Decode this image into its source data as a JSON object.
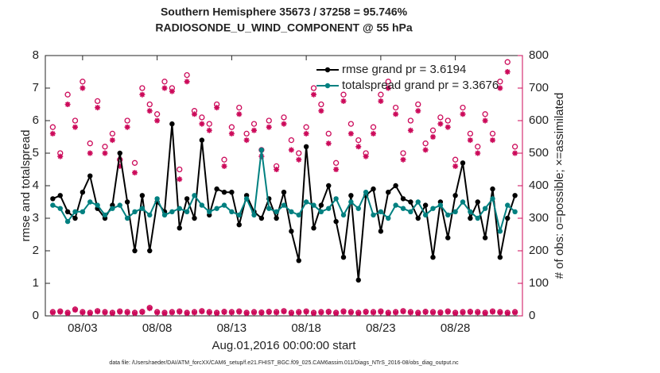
{
  "chart_data": {
    "type": "line",
    "title": [
      "Southern Hemisphere 35673 / 37258 = 95.746%",
      "RADIOSONDE_U_WIND_COMPONENT @ 55 hPa"
    ],
    "xlabel": "Aug.01,2016 00:00:00 start",
    "ylabel": "rmse and totalspread",
    "y2label": "# of obs: o=possible; ×=assimilated",
    "footnote": "data file: /Users/raeder/DAI/ATM_forcXX/CAM6_setup/f.e21.FHIST_BGC.f09_025.CAM6assim.011/Diags_NTrS_2016-08/obs_diag_output.nc",
    "legend": "northeast",
    "xlim": [
      -0.5,
      31.5
    ],
    "xticks": [
      {
        "value": 2,
        "label": "08/03"
      },
      {
        "value": 7,
        "label": "08/08"
      },
      {
        "value": 12,
        "label": "08/13"
      },
      {
        "value": 17,
        "label": "08/18"
      },
      {
        "value": 22,
        "label": "08/23"
      },
      {
        "value": 27,
        "label": "08/28"
      }
    ],
    "ylim": [
      0,
      8
    ],
    "yticks": [
      0,
      1,
      2,
      3,
      4,
      5,
      6,
      7,
      8
    ],
    "y2lim": [
      0,
      800
    ],
    "y2ticks": [
      0,
      100,
      200,
      300,
      400,
      500,
      600,
      700,
      800
    ],
    "y2color": "#cc0a5a",
    "x": [
      0,
      0.5,
      1,
      1.5,
      2,
      2.5,
      3,
      3.5,
      4,
      4.5,
      5,
      5.5,
      6,
      6.5,
      7,
      7.5,
      8,
      8.5,
      9,
      9.5,
      10,
      10.5,
      11,
      11.5,
      12,
      12.5,
      13,
      13.5,
      14,
      14.5,
      15,
      15.5,
      16,
      16.5,
      17,
      17.5,
      18,
      18.5,
      19,
      19.5,
      20,
      20.5,
      21,
      21.5,
      22,
      22.5,
      23,
      23.5,
      24,
      24.5,
      25,
      25.5,
      26,
      26.5,
      27,
      27.5,
      28,
      28.5,
      29,
      29.5,
      30,
      30.5,
      31
    ],
    "series": [
      {
        "name": "rmse grand pr = 3.6194",
        "color": "#000000",
        "marker": "dot",
        "line": true,
        "values": [
          3.6,
          3.7,
          3.2,
          3.0,
          3.8,
          4.3,
          3.3,
          3.0,
          3.4,
          5.0,
          3.5,
          2.0,
          3.7,
          2.0,
          3.5,
          3.2,
          5.9,
          2.7,
          3.6,
          3.0,
          5.4,
          3.1,
          3.9,
          3.8,
          3.8,
          2.8,
          3.7,
          3.2,
          3.0,
          3.6,
          3.0,
          3.8,
          2.6,
          1.7,
          5.2,
          2.7,
          3.4,
          4.0,
          2.9,
          1.8,
          3.7,
          1.1,
          3.7,
          3.9,
          2.6,
          3.8,
          4.0,
          3.6,
          3.5,
          3.0,
          3.4,
          1.8,
          3.5,
          2.4,
          3.7,
          4.7,
          3.0,
          3.5,
          2.4,
          3.9,
          1.8,
          3.0,
          3.7
        ]
      },
      {
        "name": "totalspread grand pr = 3.3676",
        "color": "#008080",
        "marker": "dot",
        "line": true,
        "values": [
          3.4,
          3.3,
          2.9,
          3.2,
          3.2,
          3.5,
          3.4,
          3.1,
          3.3,
          3.4,
          3.0,
          3.2,
          3.3,
          3.1,
          3.6,
          3.1,
          3.2,
          3.3,
          3.2,
          3.7,
          3.4,
          3.2,
          3.3,
          3.4,
          3.2,
          3.1,
          3.6,
          3.1,
          5.1,
          3.3,
          3.2,
          3.4,
          3.2,
          3.1,
          3.5,
          3.4,
          3.2,
          3.3,
          3.6,
          3.1,
          3.5,
          3.3,
          3.8,
          3.1,
          3.2,
          3.0,
          3.4,
          3.3,
          3.2,
          3.5,
          3.1,
          3.3,
          3.4,
          3.1,
          3.2,
          3.5,
          3.2,
          3.0,
          3.3,
          3.6,
          2.6,
          3.4,
          3.2
        ]
      },
      {
        "color": "#cc0a5a",
        "marker": "circle",
        "line": false,
        "axis": "y2",
        "values": [
          580,
          500,
          680,
          600,
          720,
          530,
          660,
          520,
          560,
          480,
          600,
          470,
          700,
          650,
          620,
          720,
          700,
          450,
          740,
          630,
          610,
          590,
          650,
          480,
          580,
          640,
          560,
          590,
          510,
          600,
          460,
          610,
          540,
          500,
          580,
          700,
          650,
          560,
          470,
          680,
          590,
          540,
          500,
          580,
          680,
          720,
          640,
          500,
          600,
          650,
          530,
          570,
          610,
          600,
          480,
          640,
          560,
          520,
          620,
          560,
          720,
          780,
          520
        ]
      },
      {
        "color": "#cc0a5a",
        "marker": "asterisk",
        "line": false,
        "axis": "y2",
        "values": [
          560,
          490,
          650,
          580,
          700,
          500,
          640,
          500,
          540,
          460,
          580,
          440,
          680,
          630,
          600,
          700,
          690,
          420,
          720,
          620,
          590,
          570,
          640,
          460,
          560,
          620,
          540,
          570,
          490,
          580,
          450,
          590,
          510,
          480,
          560,
          680,
          630,
          530,
          450,
          660,
          560,
          520,
          490,
          560,
          660,
          700,
          620,
          480,
          570,
          630,
          510,
          550,
          590,
          580,
          460,
          620,
          540,
          500,
          600,
          540,
          700,
          750,
          500
        ]
      },
      {
        "color": "#cc0a5a",
        "marker": "circle",
        "line": false,
        "axis": "y2",
        "values": [
          12,
          14,
          10,
          20,
          12,
          10,
          15,
          12,
          10,
          14,
          12,
          10,
          13,
          25,
          12,
          10,
          12,
          14,
          10,
          12,
          15,
          12,
          10,
          13,
          12,
          14,
          10,
          12,
          11,
          13,
          12,
          15,
          10,
          12,
          14,
          10,
          12,
          13,
          10,
          14,
          12,
          10,
          13,
          12,
          14,
          10,
          12,
          15,
          12,
          10,
          13,
          12,
          11,
          14,
          10,
          12,
          13,
          12,
          10,
          14,
          12,
          10,
          12
        ]
      },
      {
        "color": "#cc0a5a",
        "marker": "asterisk",
        "line": false,
        "axis": "y2",
        "values": [
          10,
          12,
          8,
          18,
          10,
          8,
          13,
          10,
          8,
          12,
          10,
          8,
          11,
          23,
          10,
          8,
          10,
          12,
          8,
          10,
          13,
          10,
          8,
          11,
          10,
          12,
          8,
          10,
          9,
          11,
          10,
          13,
          8,
          10,
          12,
          8,
          10,
          11,
          8,
          12,
          10,
          8,
          11,
          10,
          12,
          8,
          10,
          13,
          10,
          8,
          11,
          10,
          9,
          12,
          8,
          10,
          11,
          10,
          8,
          12,
          10,
          8,
          10
        ]
      }
    ]
  }
}
